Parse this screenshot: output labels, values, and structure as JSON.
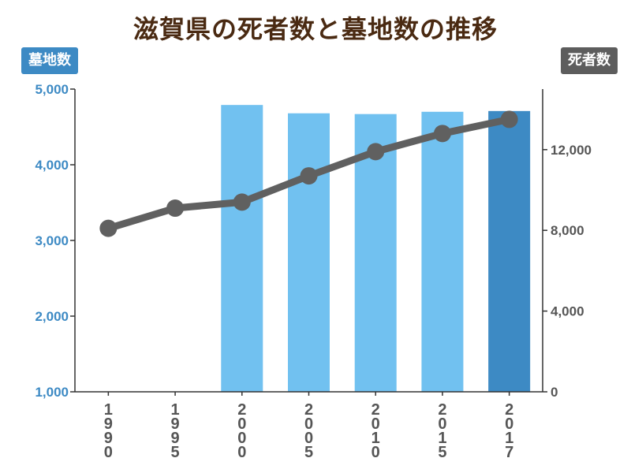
{
  "header": {
    "title": "滋賀県の死者数と墓地数の推移",
    "left_axis_badge": "墓地数",
    "right_axis_badge": "死者数"
  },
  "colors": {
    "title": "#4a2a12",
    "left_axis": "#3d8ac4",
    "right_axis": "#5d5d5d",
    "bar": "#71c1f0",
    "bar_highlight": "#3d8ac4",
    "line": "#606060"
  },
  "chart_data": {
    "type": "bar+line",
    "title": "滋賀県の死者数と墓地数の推移",
    "categories": [
      "1990",
      "1995",
      "2000",
      "2005",
      "2010",
      "2015",
      "2017"
    ],
    "left_axis": {
      "label": "墓地数",
      "ylim": [
        1000,
        5000
      ],
      "ticks": [
        1000,
        2000,
        3000,
        4000,
        5000
      ],
      "tick_labels": [
        "1,000",
        "2,000",
        "3,000",
        "4,000",
        "5,000"
      ]
    },
    "right_axis": {
      "label": "死者数",
      "ylim": [
        0,
        15000
      ],
      "ticks": [
        0,
        4000,
        8000,
        12000
      ],
      "tick_labels": [
        "0",
        "4,000",
        "8,000",
        "12,000"
      ]
    },
    "series": [
      {
        "name": "墓地数",
        "type": "bar",
        "axis": "left",
        "values": [
          null,
          null,
          4790,
          4680,
          4670,
          4700,
          4710
        ],
        "highlight_index": 6
      },
      {
        "name": "死者数",
        "type": "line",
        "axis": "right",
        "values": [
          8100,
          9100,
          9400,
          10700,
          11900,
          12800,
          13500
        ]
      }
    ],
    "grid": false,
    "legend": "none"
  }
}
